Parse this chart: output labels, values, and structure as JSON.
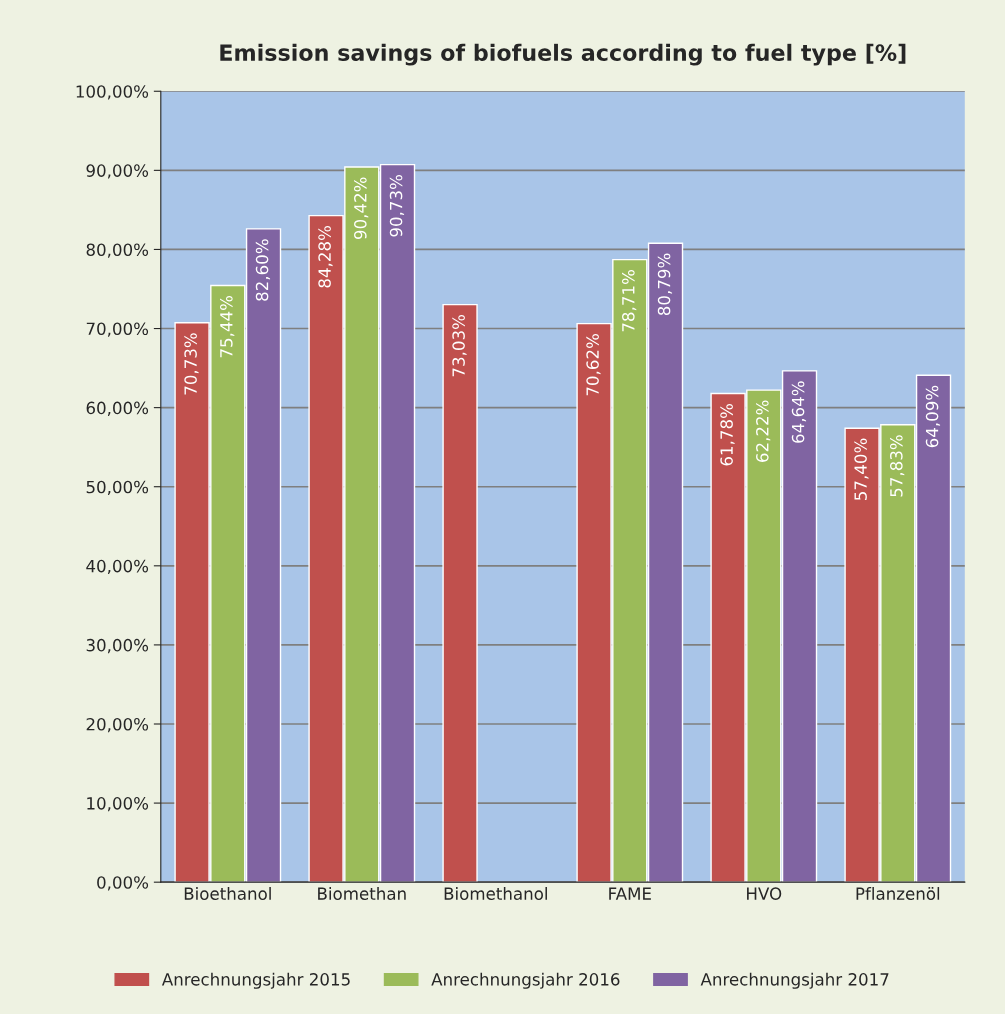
{
  "chart_data": {
    "type": "bar",
    "title": "Emission savings of biofuels according to fuel type [%]",
    "categories": [
      "Bioethanol",
      "Biomethan",
      "Biomethanol",
      "FAME",
      "HVO",
      "Pflanzenöl"
    ],
    "series": [
      {
        "name": "Anrechnungsjahr 2015",
        "color": "#c0504d",
        "values": [
          70.73,
          84.28,
          73.03,
          70.62,
          61.78,
          57.4
        ],
        "value_labels": [
          "70,73%",
          "84,28%",
          "73,03%",
          "70,62%",
          "61,78%",
          "57,40%"
        ]
      },
      {
        "name": "Anrechnungsjahr 2016",
        "color": "#9bbb59",
        "values": [
          75.44,
          90.42,
          null,
          78.71,
          62.22,
          57.83
        ],
        "value_labels": [
          "75,44%",
          "90,42%",
          null,
          "78,71%",
          "62,22%",
          "57,83%"
        ]
      },
      {
        "name": "Anrechnungsjahr 2017",
        "color": "#8064a2",
        "values": [
          82.6,
          90.73,
          null,
          80.79,
          64.64,
          64.09
        ],
        "value_labels": [
          "82,60%",
          "90,73%",
          null,
          "80,79%",
          "64,64%",
          "64,09%"
        ]
      }
    ],
    "ylim": [
      0,
      100
    ],
    "yticks": [
      {
        "value": 0,
        "label": "0,00%"
      },
      {
        "value": 10,
        "label": "10,00%"
      },
      {
        "value": 20,
        "label": "20,00%"
      },
      {
        "value": 30,
        "label": "30,00%"
      },
      {
        "value": 40,
        "label": "40,00%"
      },
      {
        "value": 50,
        "label": "50,00%"
      },
      {
        "value": 60,
        "label": "60,00%"
      },
      {
        "value": 70,
        "label": "70,00%"
      },
      {
        "value": 80,
        "label": "80,00%"
      },
      {
        "value": 90,
        "label": "90,00%"
      },
      {
        "value": 100,
        "label": "100,00%"
      }
    ],
    "grid": "y",
    "legend": "bottom"
  }
}
